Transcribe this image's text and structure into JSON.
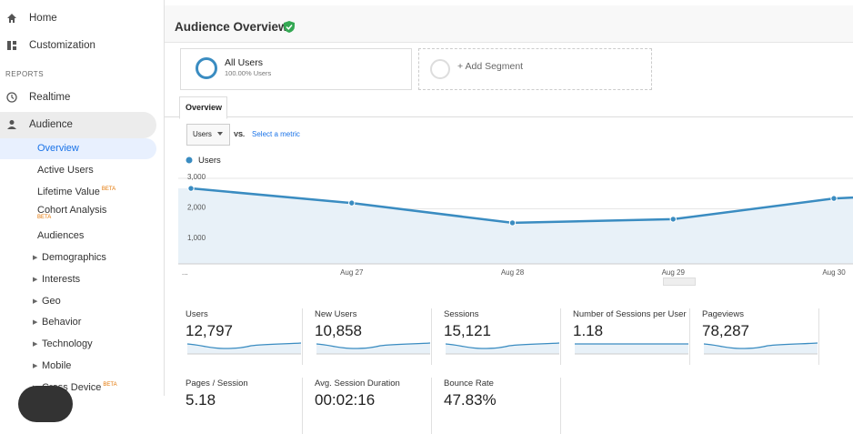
{
  "sidebar": {
    "items": [
      "Home",
      "Customization"
    ],
    "section": "REPORTS",
    "realtime": "Realtime",
    "audience": "Audience",
    "subitems": [
      "Overview",
      "Active Users",
      "Lifetime Value",
      "Cohort Analysis",
      "Audiences"
    ],
    "expandable": [
      "Demographics",
      "Interests",
      "Geo",
      "Behavior",
      "Technology",
      "Mobile",
      "Cross Device"
    ],
    "beta": "BETA"
  },
  "header": {
    "title": "Audience Overview"
  },
  "segments": {
    "name": "All Users",
    "share": "100.00% Users",
    "add": "+ Add Segment"
  },
  "tab": "Overview",
  "controls": {
    "metric": "Users",
    "vs": "VS.",
    "select": "Select a metric"
  },
  "chart_data": {
    "type": "line",
    "categories": [
      "...",
      "Aug 27",
      "Aug 28",
      "Aug 29",
      "Aug 30"
    ],
    "series": [
      {
        "name": "Users",
        "color": "#3a8cc1",
        "values": [
          2670,
          2190,
          1540,
          1660,
          2340
        ]
      }
    ],
    "ylim": [
      0,
      3000
    ],
    "yticks": [
      {
        "value": 1000,
        "label": "1,000"
      },
      {
        "value": 2000,
        "label": "2,000"
      },
      {
        "value": 3000,
        "label": "3,000"
      }
    ],
    "grid": true
  },
  "metrics": [
    {
      "name": "Users",
      "value": "12,797"
    },
    {
      "name": "New Users",
      "value": "10,858"
    },
    {
      "name": "Sessions",
      "value": "15,121"
    },
    {
      "name": "Number of Sessions per User",
      "value": "1.18"
    },
    {
      "name": "Pageviews",
      "value": "78,287"
    },
    {
      "name": "Pages / Session",
      "value": "5.18"
    },
    {
      "name": "Avg. Session Duration",
      "value": "00:02:16"
    },
    {
      "name": "Bounce Rate",
      "value": "47.83%"
    }
  ]
}
